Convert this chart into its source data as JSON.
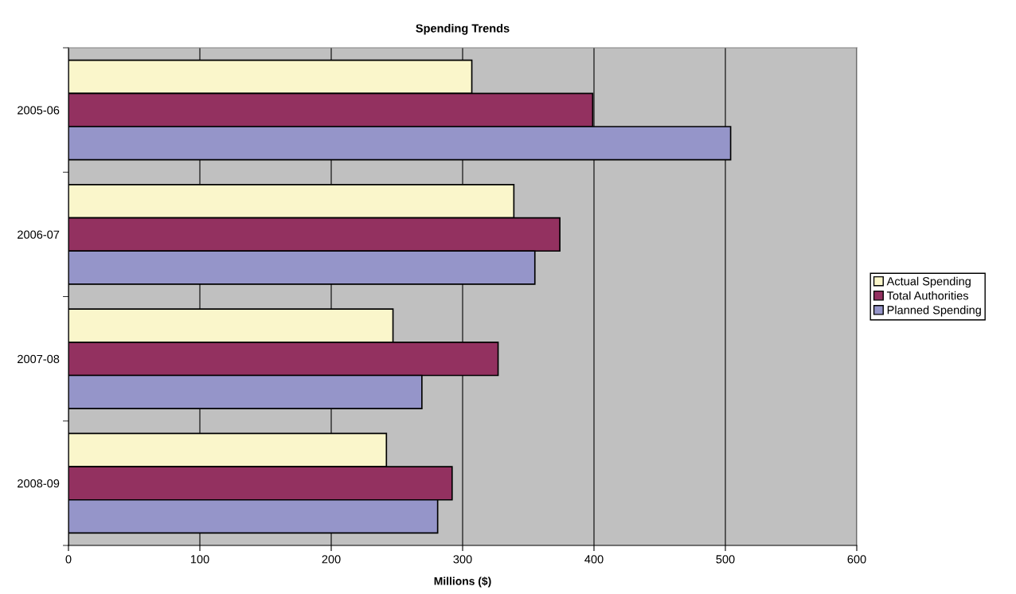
{
  "chart_data": {
    "type": "bar",
    "orientation": "horizontal",
    "title": "Spending Trends",
    "xlabel": "Millions ($)",
    "categories": [
      "2005-06",
      "2006-07",
      "2007-08",
      "2008-09"
    ],
    "series": [
      {
        "name": "Actual Spending",
        "color": "#faf6cb",
        "values": [
          307,
          339,
          247,
          242
        ]
      },
      {
        "name": "Total Authorities",
        "color": "#933160",
        "values": [
          399,
          374,
          327,
          292
        ]
      },
      {
        "name": "Planned Spending",
        "color": "#9595c9",
        "values": [
          504,
          355,
          269,
          281
        ]
      }
    ],
    "xlim": [
      0,
      600
    ],
    "xticks": [
      0,
      100,
      200,
      300,
      400,
      500,
      600
    ],
    "grid": "x",
    "legend": "right"
  }
}
